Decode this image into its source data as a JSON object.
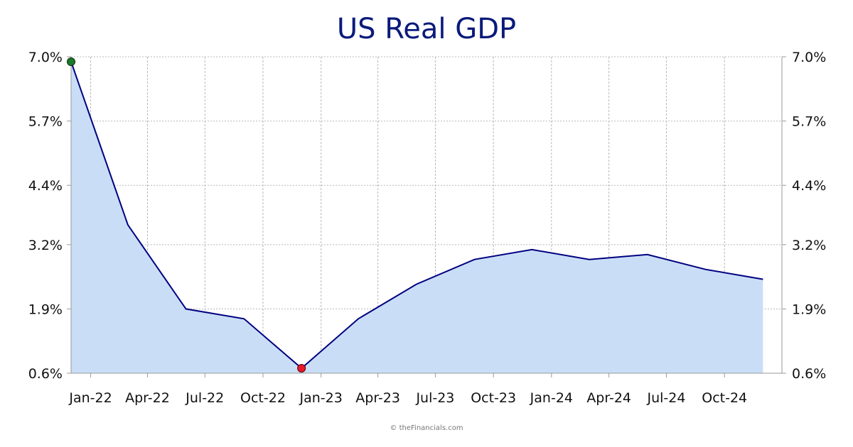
{
  "chart_data": {
    "type": "area",
    "title": "US Real GDP",
    "xlabel": "",
    "ylabel": "",
    "y_ticks": [
      "0.6%",
      "1.9%",
      "3.2%",
      "4.4%",
      "5.7%",
      "7.0%"
    ],
    "y_tick_values": [
      0.6,
      1.9,
      3.2,
      4.4,
      5.7,
      7.0
    ],
    "ylim": [
      0.6,
      7.0
    ],
    "x_ticks": [
      "Jan-22",
      "Apr-22",
      "Jul-22",
      "Oct-22",
      "Jan-23",
      "Apr-23",
      "Jul-23",
      "Oct-23",
      "Jan-24",
      "Apr-24",
      "Jul-24",
      "Oct-24"
    ],
    "x_tick_dates": [
      "2022-01-01",
      "2022-04-01",
      "2022-07-01",
      "2022-10-01",
      "2023-01-01",
      "2023-04-01",
      "2023-07-01",
      "2023-10-01",
      "2024-01-01",
      "2024-04-01",
      "2024-07-01",
      "2024-10-01"
    ],
    "xlim": [
      "2021-12-01",
      "2024-12-31"
    ],
    "series": [
      {
        "name": "",
        "x": [
          "2021-12-01",
          "2022-03-01",
          "2022-06-01",
          "2022-09-01",
          "2022-12-01",
          "2023-03-01",
          "2023-06-01",
          "2023-09-01",
          "2023-12-01",
          "2024-03-01",
          "2024-06-01",
          "2024-09-01",
          "2024-12-01"
        ],
        "values": [
          6.9,
          3.6,
          1.9,
          1.7,
          0.7,
          1.7,
          2.4,
          2.9,
          3.1,
          2.9,
          3.0,
          2.7,
          2.5
        ]
      }
    ],
    "max_point": {
      "x": "2021-12-01",
      "value": 6.9,
      "color": "#1a7a2a"
    },
    "min_point": {
      "x": "2022-12-01",
      "value": 0.7,
      "color": "#e8192c"
    },
    "grid": true,
    "colors": {
      "line": "#000080",
      "fill": "#c9def6",
      "axis": "#999999",
      "grid": "#b8b8b8"
    }
  },
  "footer": {
    "copyright": "© theFinancials.com"
  }
}
